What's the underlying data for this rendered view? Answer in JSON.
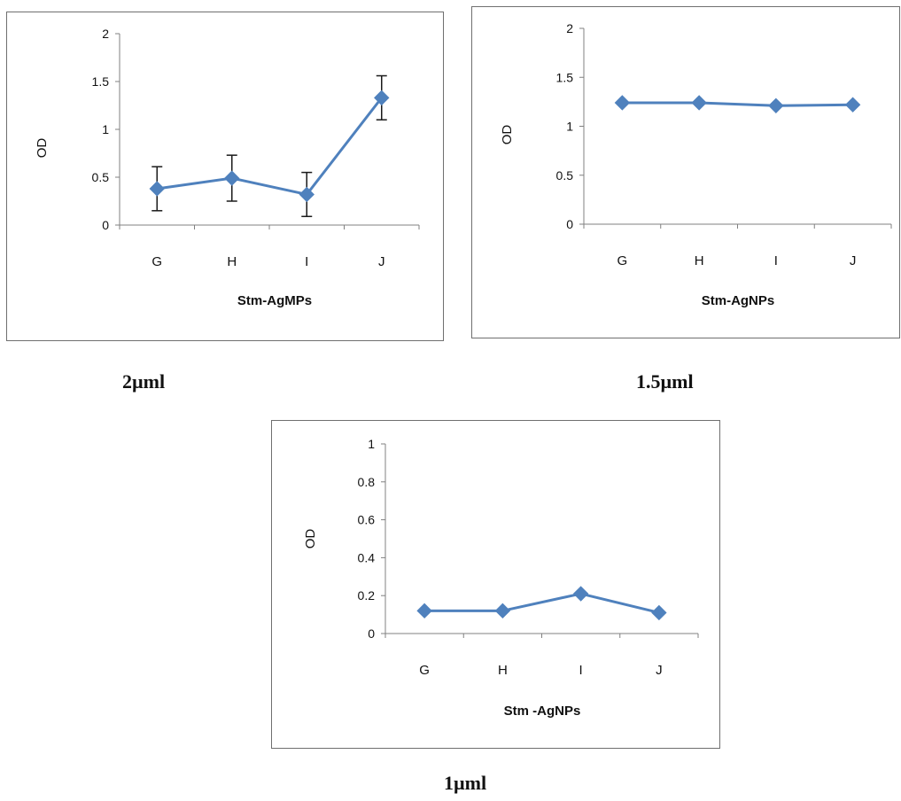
{
  "colors": {
    "series": "#4f81bd",
    "error_bar": "#1a1a1a",
    "axis": "#808080",
    "frame": "#6f6f6f"
  },
  "chart_data": [
    {
      "type": "line",
      "categories": [
        "G",
        "H",
        "I",
        "J"
      ],
      "values": [
        0.38,
        0.49,
        0.32,
        1.33
      ],
      "error": [
        0.23,
        0.24,
        0.23,
        0.23
      ],
      "xlabel": "Stm-AgMPs",
      "ylabel": "OD",
      "ylim": [
        0,
        2
      ],
      "yticks": [
        "0",
        "0.5",
        "1",
        "1.5",
        "2"
      ],
      "caption": "2µml"
    },
    {
      "type": "line",
      "categories": [
        "G",
        "H",
        "I",
        "J"
      ],
      "values": [
        1.24,
        1.24,
        1.21,
        1.22
      ],
      "xlabel": "Stm-AgNPs",
      "ylabel": "OD",
      "ylim": [
        0,
        2
      ],
      "yticks": [
        "0",
        "0.5",
        "1",
        "1.5",
        "2"
      ],
      "caption": "1.5µml"
    },
    {
      "type": "line",
      "categories": [
        "G",
        "H",
        "I",
        "J"
      ],
      "values": [
        0.12,
        0.12,
        0.21,
        0.11
      ],
      "xlabel": "Stm -AgNPs",
      "ylabel": "OD",
      "ylim": [
        0,
        1
      ],
      "yticks": [
        "0",
        "0.2",
        "0.4",
        "0.6",
        "0.8",
        "1"
      ],
      "caption": "1µml"
    }
  ]
}
